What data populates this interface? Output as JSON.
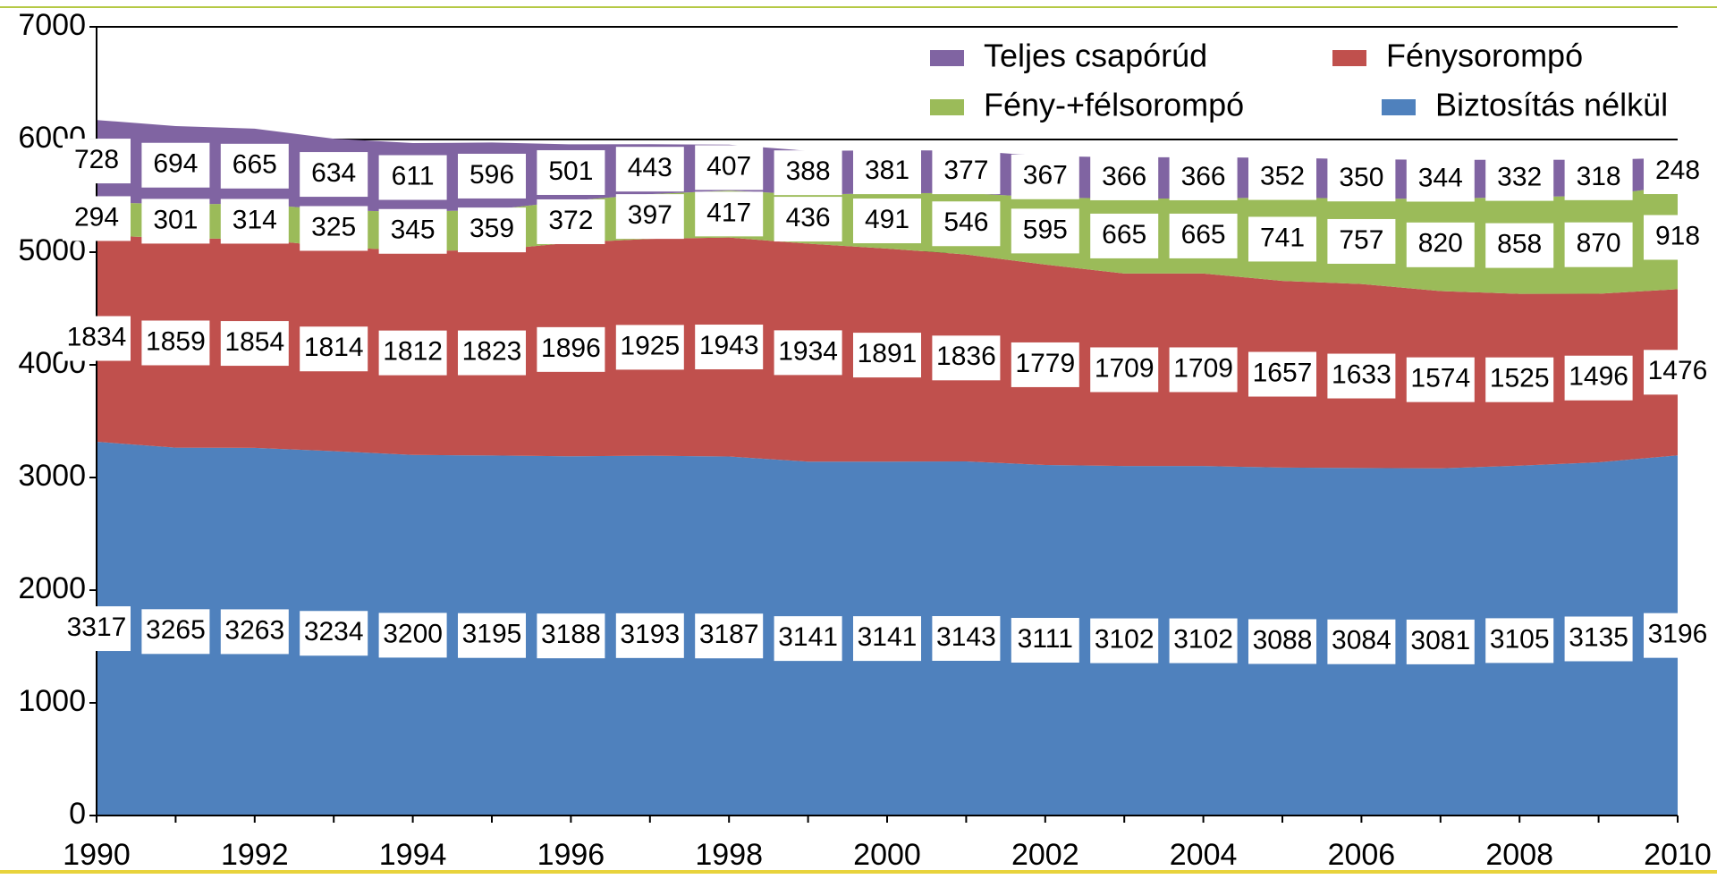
{
  "chart_data": {
    "type": "area",
    "stacked": true,
    "x": [
      1990,
      1991,
      1992,
      1993,
      1994,
      1995,
      1996,
      1997,
      1998,
      1999,
      2000,
      2001,
      2002,
      2003,
      2004,
      2005,
      2006,
      2007,
      2008,
      2009,
      2010
    ],
    "xlim": [
      1990,
      2010
    ],
    "xticks": [
      1990,
      1992,
      1994,
      1996,
      1998,
      2000,
      2002,
      2004,
      2006,
      2008,
      2010
    ],
    "ylim": [
      0,
      7000
    ],
    "yticks": [
      0,
      1000,
      2000,
      3000,
      4000,
      5000,
      6000,
      7000
    ],
    "grid": true,
    "legend": "upper right",
    "series": [
      {
        "name": "Biztosítás nélkül",
        "color": "#4f81bd",
        "values": [
          3317,
          3265,
          3263,
          3234,
          3200,
          3195,
          3188,
          3193,
          3187,
          3141,
          3141,
          3143,
          3111,
          3102,
          3102,
          3088,
          3084,
          3081,
          3105,
          3135,
          3196
        ]
      },
      {
        "name": "Fénysorompó",
        "color": "#c0504d",
        "values": [
          1834,
          1859,
          1854,
          1814,
          1812,
          1823,
          1896,
          1925,
          1943,
          1934,
          1891,
          1836,
          1779,
          1709,
          1709,
          1657,
          1633,
          1574,
          1525,
          1496,
          1476
        ]
      },
      {
        "name": "Fény-+félsorompó",
        "color": "#9bbb59",
        "values": [
          294,
          301,
          314,
          325,
          345,
          359,
          372,
          397,
          417,
          436,
          491,
          546,
          595,
          665,
          665,
          741,
          757,
          820,
          858,
          870,
          918
        ]
      },
      {
        "name": "Teljes csapórúd",
        "color": "#8064a2",
        "values": [
          728,
          694,
          665,
          634,
          611,
          596,
          501,
          443,
          407,
          388,
          381,
          377,
          367,
          366,
          366,
          352,
          350,
          344,
          332,
          318,
          248
        ]
      }
    ]
  }
}
